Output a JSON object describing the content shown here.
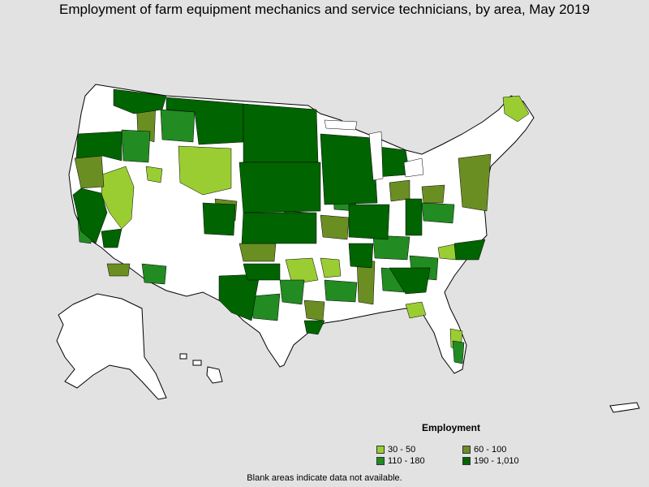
{
  "title": "Employment of farm equipment mechanics and service technicians, by area, May 2019",
  "legend": {
    "title": "Employment",
    "items": [
      {
        "label": "30 - 50",
        "color": "#9acd32"
      },
      {
        "label": "60 - 100",
        "color": "#6b8e23"
      },
      {
        "label": "110 - 180",
        "color": "#228b22"
      },
      {
        "label": "190 - 1,010",
        "color": "#006400"
      }
    ]
  },
  "footnote": "Blank areas indicate data not available.",
  "colors": {
    "background": "#e2e2e2",
    "no_data": "#ffffff",
    "border": "#000000"
  }
}
